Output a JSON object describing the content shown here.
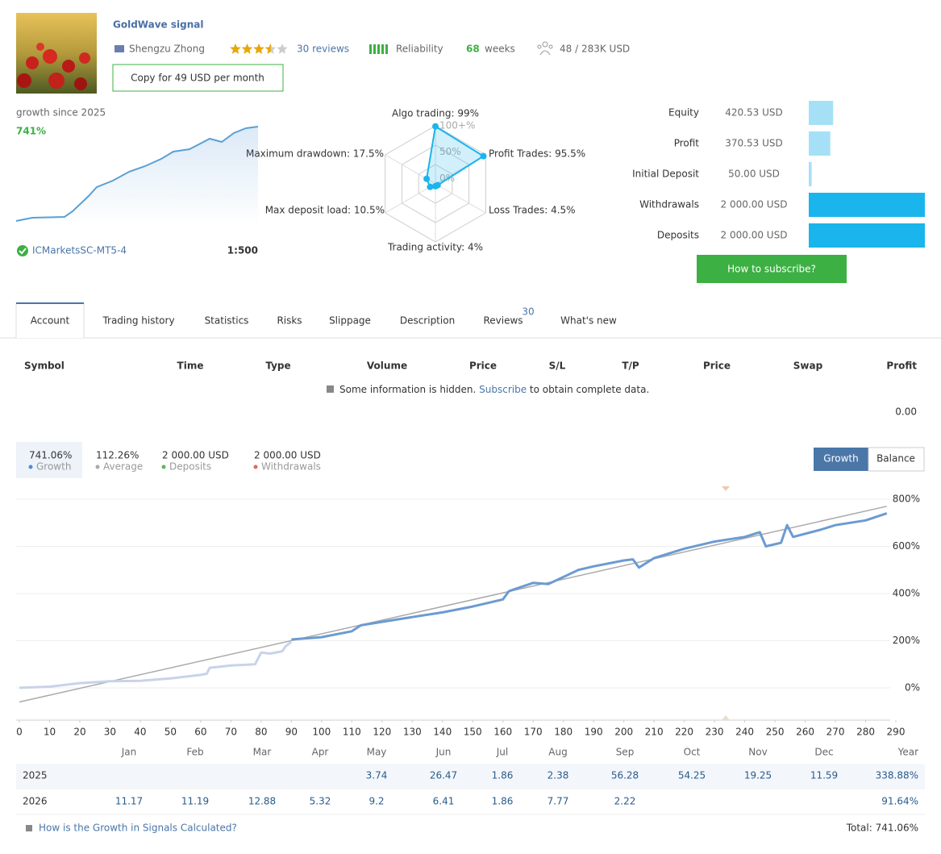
{
  "header": {
    "title": "GoldWave signal",
    "author": "Shengzu Zhong",
    "rating": 3.5,
    "reviews": "30 reviews",
    "reliability": "Reliability",
    "weeks_value": "68",
    "weeks_unit": "weeks",
    "subscribers": "48 / 283K USD",
    "copy_button": "Copy for 49 USD per month"
  },
  "growth_summary": {
    "label": "growth since 2025",
    "value": "741%",
    "broker": "ICMarketsSC-MT5-4",
    "leverage": "1:500"
  },
  "radar": {
    "type": "radar",
    "labels": [
      "Algo trading: 99%",
      "Profit Trades: 95.5%",
      "Loss Trades: 4.5%",
      "Trading activity: 4%",
      "Max deposit load: 10.5%",
      "Maximum drawdown: 17.5%"
    ],
    "values": [
      99,
      95.5,
      4.5,
      4,
      10.5,
      17.5
    ],
    "ring_labels": [
      "100+%",
      "50%",
      "0%"
    ]
  },
  "account_bars": {
    "labels": [
      "Equity",
      "Profit",
      "Initial Deposit",
      "Withdrawals",
      "Deposits"
    ],
    "values": [
      420.53,
      370.53,
      50,
      2000,
      2000
    ],
    "value_labels": [
      "420.53 USD",
      "370.53 USD",
      "50.00 USD",
      "2 000.00 USD",
      "2 000.00 USD"
    ],
    "colors": [
      "#a6e0f7",
      "#a6e0f7",
      "#a6e0f7",
      "#1ab5ec",
      "#1ab5ec"
    ]
  },
  "subscribe_button": "How to subscribe?",
  "tabs": {
    "items": [
      "Account",
      "Trading history",
      "Statistics",
      "Risks",
      "Slippage",
      "Description",
      "Reviews",
      "What's new"
    ],
    "reviews_count": "30"
  },
  "trades": {
    "columns": [
      "Symbol",
      "Time",
      "Type",
      "Volume",
      "Price",
      "S/L",
      "T/P",
      "Price",
      "Swap",
      "Profit"
    ],
    "notice_before": "Some information is hidden.",
    "notice_link": "Subscribe",
    "notice_after": "to obtain complete data.",
    "total": "0.00"
  },
  "stats": [
    {
      "value": "741.06%",
      "label": "Growth",
      "color": "#4a90d9"
    },
    {
      "value": "112.26%",
      "label": "Average",
      "color": "#aaaaaa"
    },
    {
      "value": "2 000.00 USD",
      "label": "Deposits",
      "color": "#5cb85c"
    },
    {
      "value": "2 000.00 USD",
      "label": "Withdrawals",
      "color": "#e06666"
    }
  ],
  "chart_toggle": [
    "Growth",
    "Balance"
  ],
  "chart_data": {
    "type": "line",
    "xlim": [
      0,
      290
    ],
    "ylim": [
      -137,
      865
    ],
    "xticks": [
      0,
      10,
      20,
      30,
      40,
      50,
      60,
      70,
      80,
      90,
      100,
      110,
      120,
      130,
      140,
      150,
      160,
      170,
      180,
      190,
      200,
      210,
      220,
      230,
      240,
      250,
      260,
      270,
      280,
      290
    ],
    "yticks": [
      {
        "value": 0,
        "label": "0%"
      },
      {
        "value": 200,
        "label": "200%"
      },
      {
        "value": 400,
        "label": "400%"
      },
      {
        "value": 600,
        "label": "600%"
      },
      {
        "value": 800,
        "label": "800%"
      }
    ],
    "grid": true,
    "series": [
      {
        "color": "#aaaaaa",
        "x": [
          0,
          287
        ],
        "values": [
          -60,
          770
        ]
      },
      {
        "color": "#c8d3ea",
        "x": [
          0,
          10,
          20,
          30,
          40,
          50,
          60,
          62,
          63,
          70,
          78,
          80,
          83,
          87,
          88,
          90
        ],
        "values": [
          0,
          5,
          20,
          28,
          30,
          40,
          55,
          60,
          85,
          95,
          100,
          150,
          145,
          155,
          175,
          195
        ]
      },
      {
        "color": "#6b9bd2",
        "x": [
          90,
          100,
          110,
          113,
          120,
          130,
          140,
          150,
          160,
          162,
          170,
          175,
          180,
          185,
          190,
          200,
          203,
          205,
          210,
          220,
          230,
          240,
          245,
          247,
          252,
          254,
          256,
          265,
          270,
          280,
          287
        ],
        "values": [
          205,
          215,
          240,
          265,
          280,
          300,
          320,
          345,
          375,
          410,
          445,
          440,
          470,
          500,
          515,
          540,
          545,
          510,
          550,
          590,
          620,
          640,
          660,
          600,
          615,
          690,
          640,
          670,
          690,
          710,
          740
        ]
      }
    ]
  },
  "monthly": {
    "columns": [
      "Jan",
      "Feb",
      "Mar",
      "Apr",
      "May",
      "Jun",
      "Jul",
      "Aug",
      "Sep",
      "Oct",
      "Nov",
      "Dec",
      "Year"
    ],
    "rows": [
      {
        "year": "2025",
        "values": [
          null,
          null,
          null,
          null,
          "3.74",
          "26.47",
          "1.86",
          "2.38",
          "56.28",
          "54.25",
          "19.25",
          "11.59",
          "338.88%"
        ]
      },
      {
        "year": "2026",
        "values": [
          "11.17",
          "11.19",
          "12.88",
          "5.32",
          "9.2",
          "6.41",
          "1.86",
          "7.77",
          "2.22",
          null,
          null,
          null,
          "91.64%"
        ]
      }
    ]
  },
  "footer": {
    "link": "How is the Growth in Signals Calculated?",
    "total": "Total: 741.06%"
  }
}
